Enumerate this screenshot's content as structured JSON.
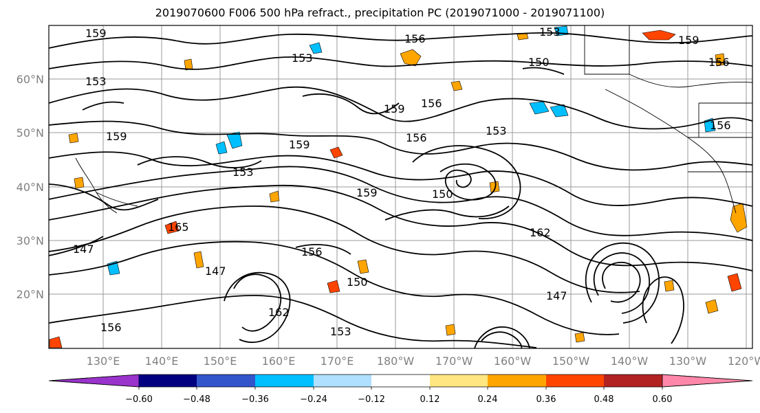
{
  "title": "2019070600 F006 500 hPa refract., precipitation PC (2019071000 - 2019071100)",
  "map": {
    "lat_labels": [
      "60°N",
      "50°N",
      "40°N",
      "30°N",
      "20°N"
    ],
    "lon_labels": [
      "130°E",
      "140°E",
      "150°E",
      "160°E",
      "170°E",
      "180°W",
      "170°W",
      "160°W",
      "150°W",
      "140°W",
      "130°W",
      "120°W"
    ],
    "contour_labels": [
      "159",
      "156",
      "153",
      "150",
      "147",
      "162",
      "165"
    ]
  },
  "colorbar": {
    "ticks": [
      "−0.60",
      "−0.48",
      "−0.36",
      "−0.24",
      "−0.12",
      "0.12",
      "0.24",
      "0.36",
      "0.48",
      "0.60"
    ],
    "colors": [
      "#9933cc",
      "#000080",
      "#3355cc",
      "#00bfff",
      "#b0e0ff",
      "#ffffff",
      "#ffe680",
      "#ffa500",
      "#ff4500",
      "#b22222",
      "#ff88aa"
    ]
  }
}
